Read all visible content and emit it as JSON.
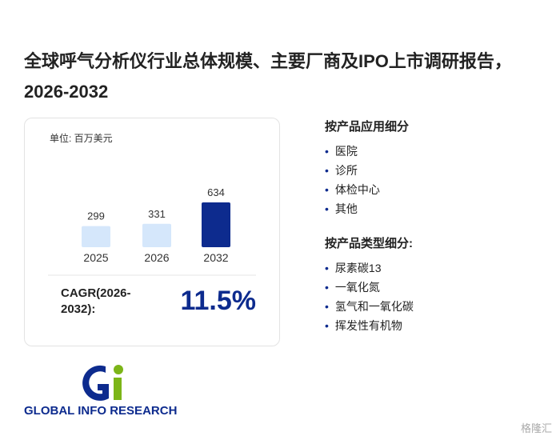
{
  "title": "全球呼气分析仪行业总体规模、主要厂商及IPO上市调研报告，2026-2032",
  "chart_data": {
    "type": "bar",
    "unit": "单位: 百万美元",
    "categories": [
      "2025",
      "2026",
      "2032"
    ],
    "values": [
      299,
      331,
      634
    ],
    "colors": [
      "#d5e7fb",
      "#d5e7fb",
      "#0d2b8e"
    ]
  },
  "cagr": {
    "label": "CAGR(2026-2032):",
    "value": "11.5%"
  },
  "segments": [
    {
      "title": "按产品应用细分",
      "items": [
        "医院",
        "诊所",
        "体检中心",
        "其他"
      ]
    },
    {
      "title": "按产品类型细分:",
      "items": [
        "尿素碳13",
        "一氧化氮",
        "氢气和一氧化碳",
        "挥发性有机物"
      ]
    }
  ],
  "logo": "GLOBAL INFO RESEARCH",
  "source": "格隆汇"
}
